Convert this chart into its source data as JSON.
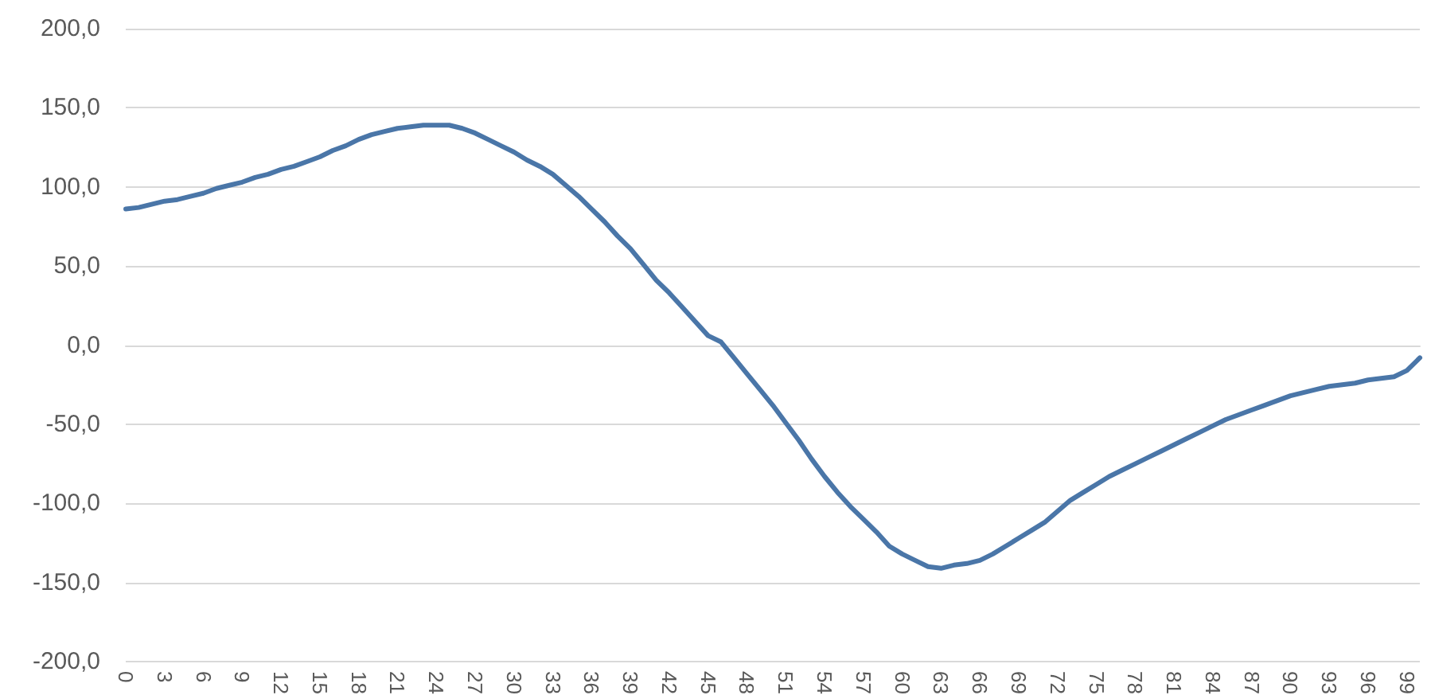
{
  "chart_data": {
    "type": "line",
    "categories": [
      "0",
      null,
      null,
      "3",
      null,
      null,
      "6",
      null,
      null,
      "9",
      null,
      null,
      "12",
      null,
      null,
      "15",
      null,
      null,
      "18",
      null,
      null,
      "21",
      null,
      null,
      "24",
      null,
      null,
      "27",
      null,
      null,
      "30",
      null,
      null,
      "33",
      null,
      null,
      "36",
      null,
      null,
      "39",
      null,
      null,
      "42",
      null,
      null,
      "45",
      null,
      null,
      "48",
      null,
      null,
      "51",
      null,
      null,
      "54",
      null,
      null,
      "57",
      null,
      null,
      "60",
      null,
      null,
      "63",
      null,
      null,
      "66",
      null,
      null,
      "69",
      null,
      null,
      "72",
      null,
      null,
      "75",
      null,
      null,
      "78",
      null,
      null,
      "81",
      null,
      null,
      "84",
      null,
      null,
      "87",
      null,
      null,
      "90",
      null,
      null,
      "93",
      null,
      null,
      "96",
      null,
      null,
      "99",
      null
    ],
    "series": [
      {
        "color": "#4a76a8",
        "values": [
          86,
          87,
          89,
          91,
          92,
          94,
          96,
          99,
          101,
          103,
          106,
          108,
          111,
          113,
          116,
          119,
          123,
          126,
          130,
          133,
          135,
          137,
          138,
          139,
          139,
          139,
          137,
          134,
          130,
          126,
          122,
          117,
          113,
          108,
          101,
          94,
          86,
          78,
          69,
          61,
          51,
          41,
          33,
          24,
          15,
          6,
          2,
          -8,
          -18,
          -28,
          -38,
          -49,
          -60,
          -72,
          -83,
          -93,
          -102,
          -110,
          -118,
          -127,
          -132,
          -136,
          -140,
          -141,
          -139,
          -138,
          -136,
          -132,
          -127,
          -122,
          -117,
          -112,
          -105,
          -98,
          -93,
          -88,
          -83,
          -79,
          -75,
          -71,
          -67,
          -63,
          -59,
          -55,
          -51,
          -47,
          -44,
          -41,
          -38,
          -35,
          -32,
          -30,
          -28,
          -26,
          -25,
          -24,
          -22,
          -21,
          -20,
          -16,
          -8
        ]
      }
    ],
    "ylim": [
      -200,
      200
    ],
    "yticks": [
      {
        "value": -200,
        "label": "-200,0"
      },
      {
        "value": -150,
        "label": "-150,0"
      },
      {
        "value": -100,
        "label": "-100,0"
      },
      {
        "value": -50,
        "label": "-50,0"
      },
      {
        "value": 0,
        "label": "0,0"
      },
      {
        "value": 50,
        "label": "50,0"
      },
      {
        "value": 100,
        "label": "100,0"
      },
      {
        "value": 150,
        "label": "150,0"
      },
      {
        "value": 200,
        "label": "200,0"
      }
    ],
    "grid": "y",
    "marker": "none",
    "line_style": "solid"
  }
}
